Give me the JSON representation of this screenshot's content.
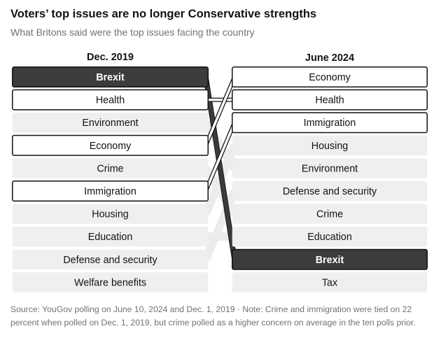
{
  "header": {
    "title": "Voters’ top issues are no longer Conservative strengths",
    "subtitle": "What Britons said were the top issues facing the country"
  },
  "chart_data": {
    "type": "slope-ranking",
    "title": "Voters’ top issues are no longer Conservative strengths",
    "subtitle": "What Britons said were the top issues facing the country",
    "left_label": "Dec. 2019",
    "right_label": "June 2024",
    "left_ranking": [
      "Brexit",
      "Health",
      "Environment",
      "Economy",
      "Crime",
      "Immigration",
      "Housing",
      "Education",
      "Defense and security",
      "Welfare benefits"
    ],
    "right_ranking": [
      "Economy",
      "Health",
      "Immigration",
      "Housing",
      "Environment",
      "Defense and security",
      "Crime",
      "Education",
      "Brexit",
      "Tax"
    ],
    "highlighted": {
      "Brexit": "filled",
      "Health": "outlined",
      "Economy": "outlined",
      "Immigration": "outlined"
    },
    "colors": {
      "filled": "#3c3c3c",
      "outline": "#121212",
      "background_box": "#efefef",
      "muted_link": "#ececec"
    }
  },
  "footer": {
    "source": "Source: YouGov polling on June 10, 2024 and Dec. 1, 2019  ·  Note: Crime and immigration were tied on 22 percent when polled on Dec. 1, 2019, but crime polled as a higher concern on average in the ten polls prior."
  }
}
